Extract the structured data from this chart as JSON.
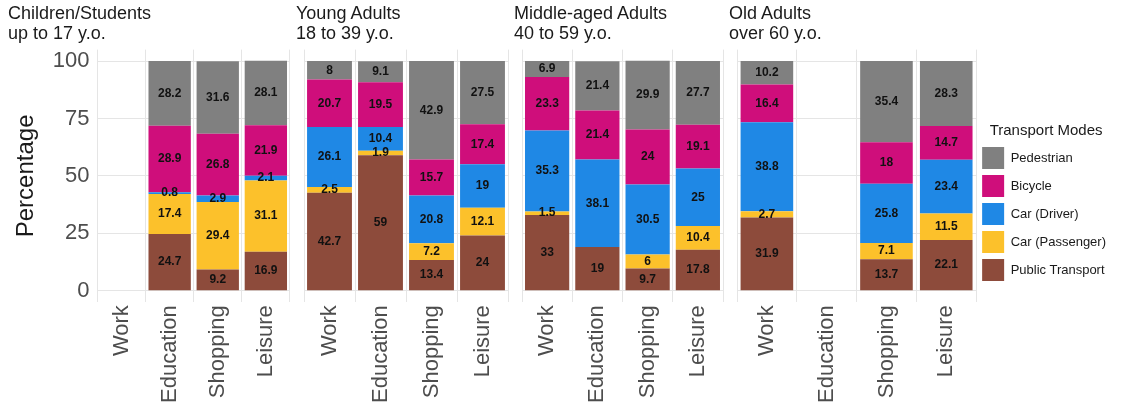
{
  "chart_data": [
    {
      "type": "bar",
      "stacked": true,
      "title": "Children/Students\nup to 17 y.o.",
      "ylabel": "Percentage",
      "categories": [
        "Work",
        "Education",
        "Shopping",
        "Leisure"
      ],
      "ylim": [
        -5,
        105
      ],
      "yticks": [
        0,
        25,
        50,
        75,
        100
      ],
      "grid": true,
      "legend": false,
      "data_labels": true,
      "series": [
        {
          "color": "#8d4b3b",
          "values": [
            null,
            24.7,
            9.2,
            16.9
          ]
        },
        {
          "color": "#fcc12b",
          "values": [
            null,
            17.4,
            29.4,
            31.1
          ]
        },
        {
          "color": "#1f88e5",
          "values": [
            null,
            0.8,
            2.9,
            2.1
          ]
        },
        {
          "color": "#cf0e7b",
          "values": [
            null,
            28.9,
            26.8,
            21.9
          ]
        },
        {
          "color": "#808080",
          "values": [
            null,
            28.2,
            31.6,
            28.1
          ]
        }
      ]
    },
    {
      "type": "bar",
      "stacked": true,
      "title": "Young Adults\n18 to 39 y.o.",
      "categories": [
        "Work",
        "Education",
        "Shopping",
        "Leisure"
      ],
      "ylim": [
        -5,
        105
      ],
      "yticks": [
        0,
        25,
        50,
        75,
        100
      ],
      "tick_labels": "x",
      "grid": true,
      "legend": false,
      "data_labels": true,
      "series": [
        {
          "color": "#8d4b3b",
          "values": [
            42.7,
            59,
            13.4,
            24
          ]
        },
        {
          "color": "#fcc12b",
          "values": [
            2.5,
            1.9,
            7.2,
            12.1
          ]
        },
        {
          "color": "#1f88e5",
          "values": [
            26.1,
            10.4,
            20.8,
            19
          ]
        },
        {
          "color": "#cf0e7b",
          "values": [
            20.7,
            19.5,
            15.7,
            17.4
          ]
        },
        {
          "color": "#808080",
          "values": [
            8,
            9.1,
            42.9,
            27.5
          ]
        }
      ]
    },
    {
      "type": "bar",
      "stacked": true,
      "title": "Middle-aged Adults\n40 to 59 y.o.",
      "categories": [
        "Work",
        "Education",
        "Shopping",
        "Leisure"
      ],
      "ylim": [
        -5,
        105
      ],
      "yticks": [
        0,
        25,
        50,
        75,
        100
      ],
      "tick_labels": "x",
      "grid": true,
      "legend": false,
      "data_labels": true,
      "series": [
        {
          "color": "#8d4b3b",
          "values": [
            33,
            19,
            9.7,
            17.8
          ]
        },
        {
          "color": "#fcc12b",
          "values": [
            1.5,
            null,
            6,
            10.4
          ]
        },
        {
          "color": "#1f88e5",
          "values": [
            35.3,
            38.1,
            30.5,
            25
          ]
        },
        {
          "color": "#cf0e7b",
          "values": [
            23.3,
            21.4,
            24,
            19.1
          ]
        },
        {
          "color": "#808080",
          "values": [
            6.9,
            21.4,
            29.9,
            27.7
          ]
        }
      ]
    },
    {
      "type": "bar",
      "stacked": true,
      "title": "Old Adults\nover 60 y.o.",
      "categories": [
        "Work",
        "Education",
        "Shopping",
        "Leisure"
      ],
      "ylim": [
        -5,
        105
      ],
      "yticks": [
        0,
        25,
        50,
        75,
        100
      ],
      "tick_labels": "x",
      "grid": true,
      "legend": "right",
      "legend_title": "Transport Modes",
      "data_labels": true,
      "series": [
        {
          "name": "Public Transport",
          "color": "#8d4b3b",
          "values": [
            31.9,
            null,
            13.7,
            22.1
          ]
        },
        {
          "name": "Car (Passenger)",
          "color": "#fcc12b",
          "values": [
            2.7,
            null,
            7.1,
            11.5
          ]
        },
        {
          "name": "Car (Driver)",
          "color": "#1f88e5",
          "values": [
            38.8,
            null,
            25.8,
            23.4
          ]
        },
        {
          "name": "Bicycle",
          "color": "#cf0e7b",
          "values": [
            16.4,
            null,
            18,
            14.7
          ]
        },
        {
          "name": "Pedestrian",
          "color": "#808080",
          "values": [
            10.2,
            null,
            35.4,
            28.3
          ]
        }
      ]
    }
  ]
}
